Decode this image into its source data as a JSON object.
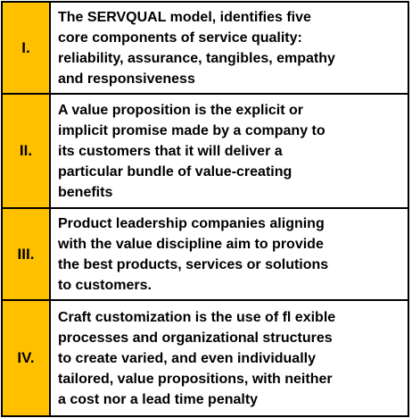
{
  "table": {
    "rows": [
      {
        "numeral": "I.",
        "lines": [
          "The SERVQUAL model, identifies five",
          "core components of service quality:",
          "reliability, assurance, tangibles, empathy",
          "and responsiveness"
        ]
      },
      {
        "numeral": "II.",
        "lines": [
          "A value proposition is the explicit or",
          "implicit promise made by a company to",
          "its customers that it will deliver a",
          "particular bundle of value-creating",
          "benefits"
        ]
      },
      {
        "numeral": "III.",
        "lines": [
          "Product leadership companies aligning",
          "with the value discipline aim to provide",
          "the best products, services or solutions",
          "to customers."
        ]
      },
      {
        "numeral": "IV.",
        "lines": [
          "Craft customization is the use of fl exible",
          "processes and organizational structures",
          "to create varied, and even individually",
          "tailored, value propositions, with neither",
          "a cost nor a lead time penalty"
        ]
      }
    ]
  }
}
